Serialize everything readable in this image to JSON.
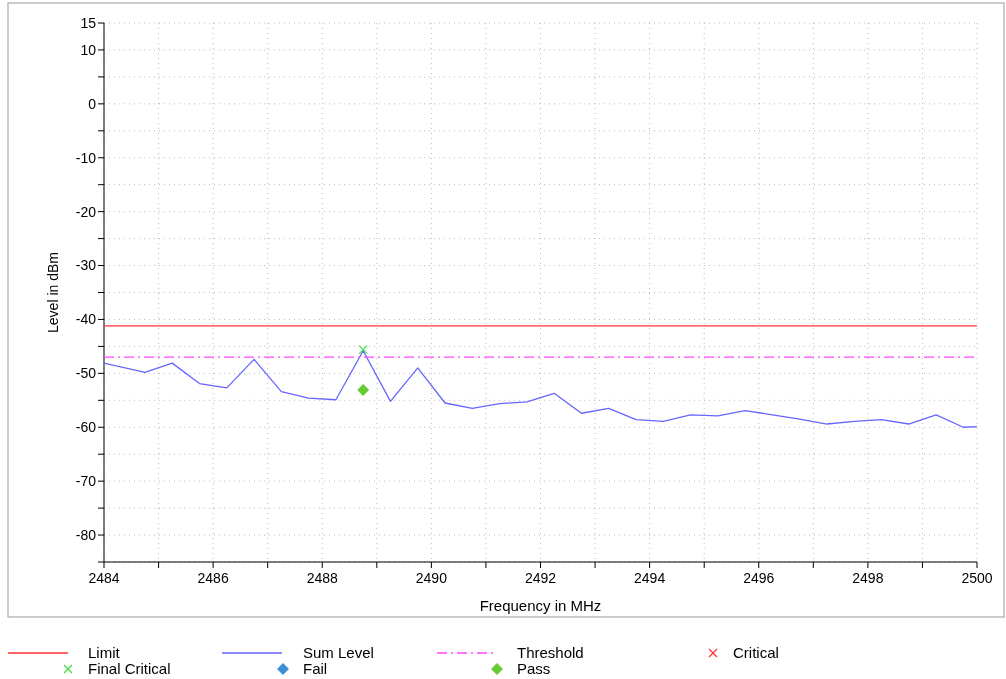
{
  "chart_data": {
    "type": "line",
    "xlabel": "Frequency in MHz",
    "ylabel": "Level in dBm",
    "xlim": [
      2484,
      2500
    ],
    "ylim": [
      -85,
      15
    ],
    "xticks": [
      2484,
      {
        "value": 2485,
        "label": null
      },
      2486,
      {
        "value": 2487,
        "label": null
      },
      2488,
      {
        "value": 2489,
        "label": null
      },
      2490,
      {
        "value": 2491,
        "label": null
      },
      2492,
      {
        "value": 2493,
        "label": null
      },
      2494,
      {
        "value": 2495,
        "label": null
      },
      2496,
      {
        "value": 2497,
        "label": null
      },
      2498,
      {
        "value": 2499,
        "label": null
      },
      2500
    ],
    "yticks": [
      15,
      10,
      {
        "value": 5,
        "label": null
      },
      0,
      {
        "value": -5,
        "label": null
      },
      -10,
      {
        "value": -15,
        "label": null
      },
      -20,
      {
        "value": -25,
        "label": null
      },
      -30,
      {
        "value": -35,
        "label": null
      },
      -40,
      {
        "value": -45,
        "label": null
      },
      -50,
      {
        "value": -55,
        "label": null
      },
      -60,
      {
        "value": -65,
        "label": null
      },
      -70,
      {
        "value": -75,
        "label": null
      },
      -80,
      {
        "value": -85,
        "label": null
      }
    ],
    "grid": true,
    "legend": "bottom",
    "series": [
      {
        "name": "Limit",
        "color": "#ff3333",
        "line_style": "solid",
        "marker": "none",
        "x": [
          2484,
          2500
        ],
        "values": [
          -41.2,
          -41.2
        ]
      },
      {
        "name": "Sum Level",
        "color": "#6666ff",
        "line_style": "solid",
        "marker": "none",
        "x": [
          2484,
          2484.75,
          2485.25,
          2485.75,
          2486.25,
          2486.75,
          2487.25,
          2487.75,
          2488.25,
          2488.75,
          2489.25,
          2489.75,
          2490.25,
          2490.75,
          2491.25,
          2491.75,
          2492.25,
          2492.75,
          2493.25,
          2493.75,
          2494.25,
          2494.75,
          2495.25,
          2495.75,
          2496.25,
          2496.75,
          2497.25,
          2497.75,
          2498.25,
          2498.75,
          2499.25,
          2499.75,
          2500
        ],
        "values": [
          -48.1,
          -49.8,
          -48.1,
          -51.9,
          -52.7,
          -47.4,
          -53.4,
          -54.6,
          -54.9,
          -45.8,
          -55.2,
          -49.0,
          -55.5,
          -56.5,
          -55.6,
          -55.3,
          -53.7,
          -57.4,
          -56.5,
          -58.6,
          -58.9,
          -57.7,
          -57.9,
          -56.9,
          -57.7,
          -58.5,
          -59.4,
          -58.9,
          -58.6,
          -59.4,
          -57.7,
          -60.0,
          -59.9
        ]
      },
      {
        "name": "Threshold",
        "color": "#ff44ff",
        "line_style": "dashdot",
        "marker": "none",
        "x": [
          2484,
          2500
        ],
        "values": [
          -47,
          -47
        ]
      },
      {
        "name": "Critical",
        "type": "scatter",
        "color": "#ff3333",
        "marker": "cross"
      },
      {
        "name": "Final Critical",
        "type": "scatter",
        "color": "#44dd44",
        "marker": "cross",
        "x": [
          2488.75
        ],
        "values": [
          -45.6
        ]
      },
      {
        "name": "Fail",
        "type": "scatter",
        "color": "#3d8fd6",
        "marker": "diamond"
      },
      {
        "name": "Pass",
        "type": "scatter",
        "color": "#66cc33",
        "marker": "diamond",
        "x": [
          2488.75
        ],
        "values": [
          -53.1
        ]
      }
    ]
  }
}
